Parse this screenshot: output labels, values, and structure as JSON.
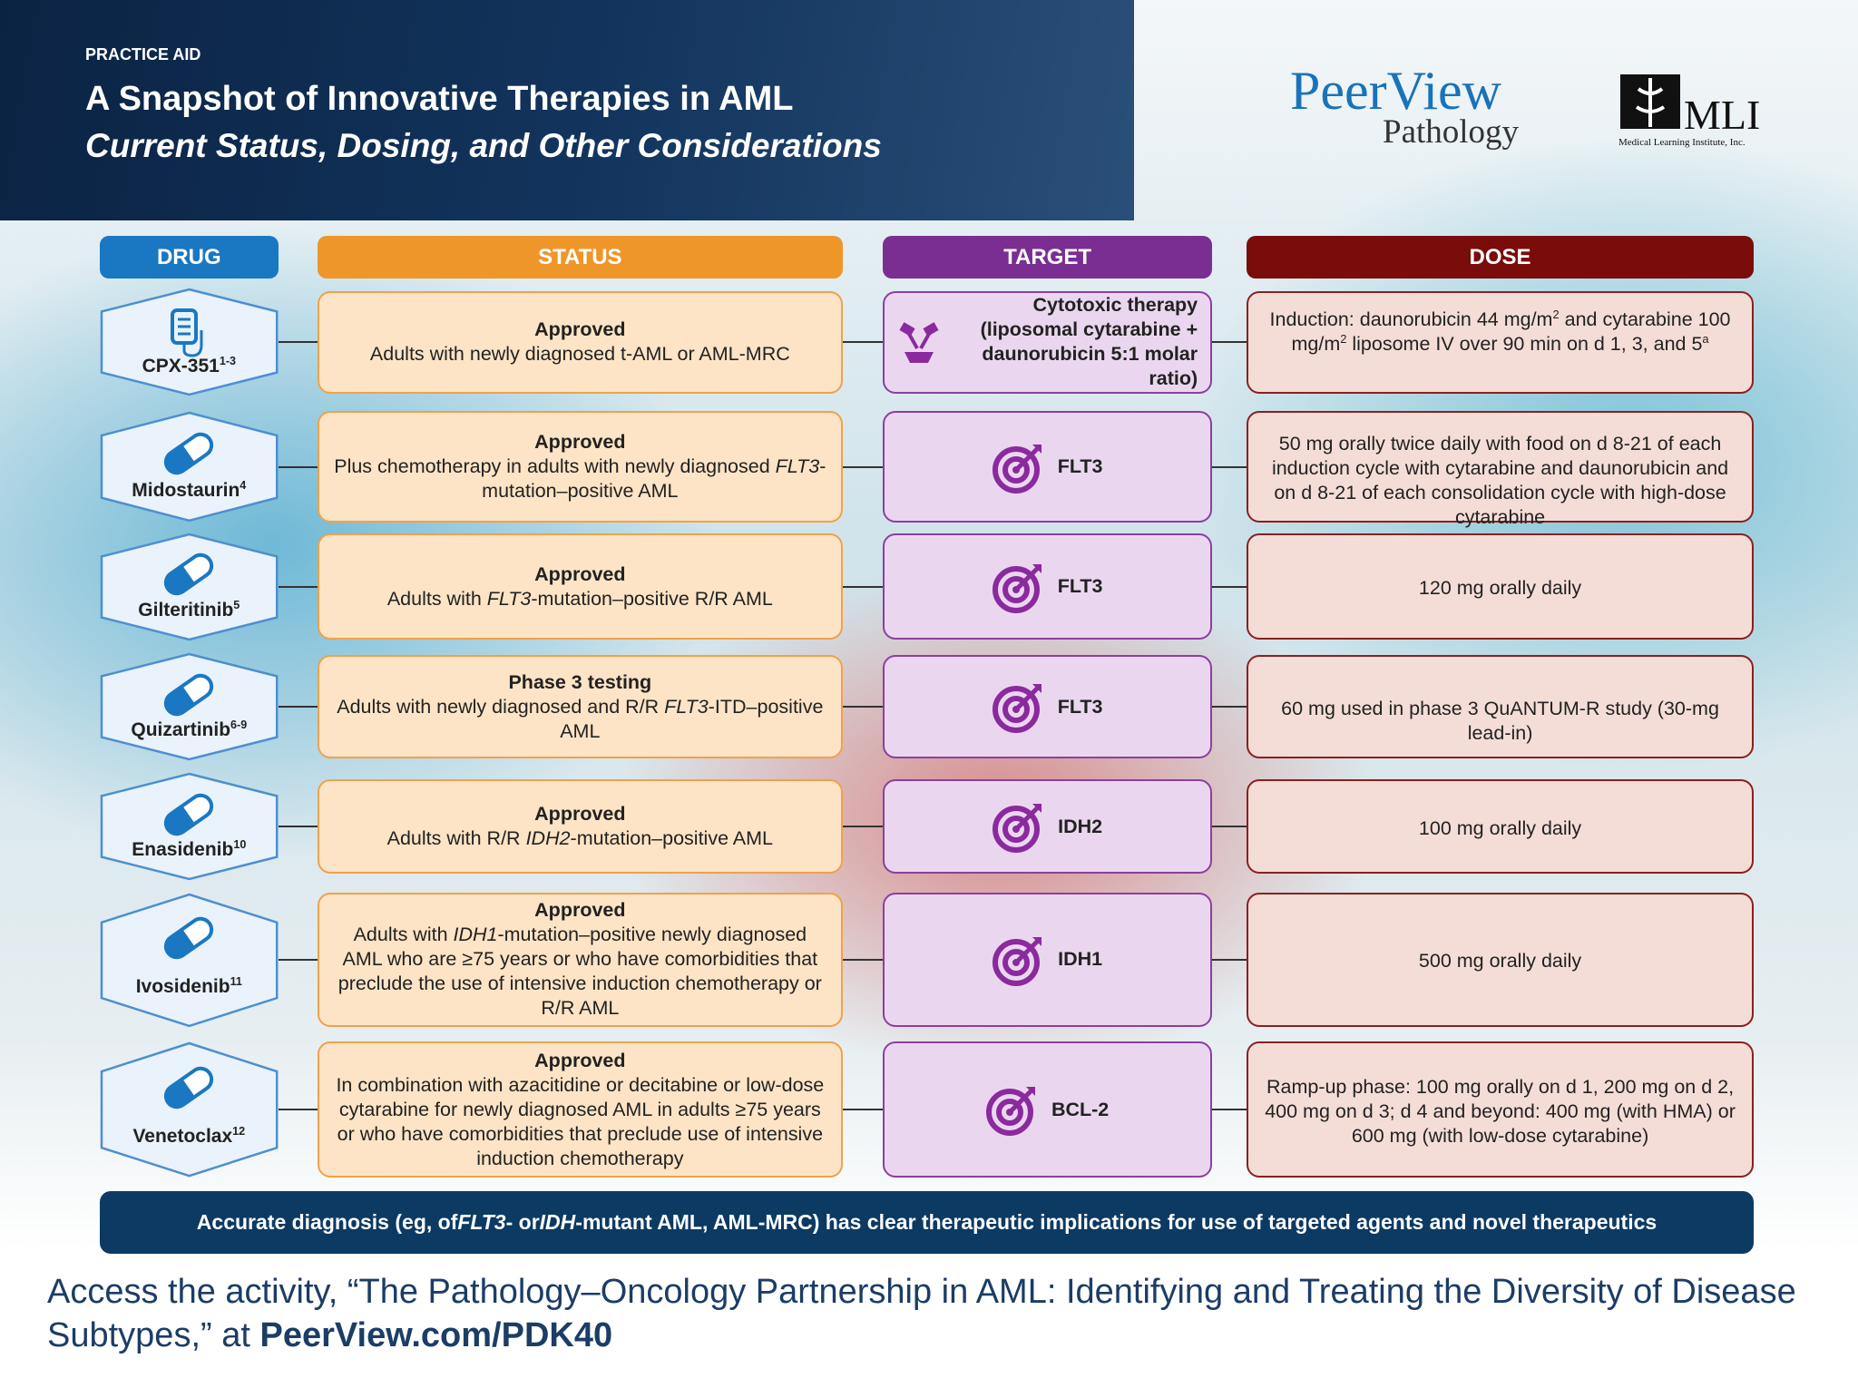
{
  "header": {
    "label": "PRACTICE AID",
    "title": "A Snapshot of Innovative Therapies in AML",
    "subtitle": "Current Status, Dosing, and Other Considerations"
  },
  "logos": {
    "peerview": "PeerView",
    "pathology": "Pathology",
    "mli": "MLI",
    "mli_full": "Medical Learning Institute, Inc."
  },
  "columns": [
    "DRUG",
    "STATUS",
    "TARGET",
    "DOSE"
  ],
  "rows": [
    {
      "drug": "CPX-351",
      "ref": "1-3",
      "status_title": "Approved",
      "status": [
        "Adults with newly diagnosed t-AML or AML-MRC"
      ],
      "target": "Cytotoxic therapy (liposomal cytarabine + daunorubicin 5:1 molar ratio)",
      "dose": [
        "Induction: daunorubicin 44 mg/m",
        {
          "sup": "2"
        },
        " and cytarabine 100 mg/m",
        {
          "sup": "2"
        },
        " liposome IV over 90 min on d 1, 3, and 5",
        {
          "sup": "a"
        }
      ]
    },
    {
      "drug": "Midostaurin",
      "ref": "4",
      "status_title": "Approved",
      "status": [
        "Plus chemotherapy in adults with newly diagnosed ",
        {
          "i": "FLT3"
        },
        "-mutation–positive AML"
      ],
      "target": "FLT3",
      "dose": [
        "50 mg orally twice daily with food on d 8-21 of each induction cycle with cytarabine and daunorubicin and on d 8-21 of each consolidation cycle with high-dose cytarabine"
      ]
    },
    {
      "drug": "Gilteritinib",
      "ref": "5",
      "status_title": "Approved",
      "status": [
        "Adults with ",
        {
          "i": "FLT3"
        },
        "-mutation–positive R/R AML"
      ],
      "target": "FLT3",
      "dose": [
        "120 mg orally daily"
      ]
    },
    {
      "drug": "Quizartinib",
      "ref": "6-9",
      "status_title": "Phase 3 testing",
      "status": [
        "Adults with newly diagnosed and R/R ",
        {
          "i": "FLT3"
        },
        "-ITD–positive AML"
      ],
      "target": "FLT3",
      "dose": [
        "60 mg used in phase 3 QuANTUM-R study (30-mg lead-in)"
      ]
    },
    {
      "drug": "Enasidenib",
      "ref": "10",
      "status_title": "Approved",
      "status": [
        "Adults with R/R ",
        {
          "i": "IDH2"
        },
        "-mutation–positive AML"
      ],
      "target": "IDH2",
      "dose": [
        "100 mg orally daily"
      ]
    },
    {
      "drug": "Ivosidenib",
      "ref": "11",
      "status_title": "Approved",
      "status": [
        "Adults with ",
        {
          "i": "IDH1"
        },
        "-mutation–positive newly diagnosed AML who are ≥75 years or who have comorbidities that preclude the use of intensive induction chemotherapy or R/R AML"
      ],
      "target": "IDH1",
      "dose": [
        "500 mg orally daily"
      ]
    },
    {
      "drug": "Venetoclax",
      "ref": "12",
      "status_title": "Approved",
      "status": [
        "In combination with azacitidine or decitabine or low-dose cytarabine for newly diagnosed AML in adults ≥75 years or who have comorbidities that preclude use of intensive induction chemotherapy"
      ],
      "target": "BCL-2",
      "dose": [
        "Ramp-up phase: 100 mg orally on d 1, 200 mg on d 2, 400 mg on d 3; d 4 and beyond: 400 mg (with HMA) or 600 mg (with low-dose cytarabine)"
      ]
    }
  ],
  "banner": [
    "Accurate diagnosis (eg, of ",
    {
      "i": "FLT3"
    },
    "- or ",
    {
      "i": "IDH"
    },
    "-mutant AML, AML-MRC) has clear therapeutic implications for use of targeted agents and novel therapeutics"
  ],
  "footer": [
    "Access the activity, “The Pathology–Oncology Partnership in AML: Identifying and Treating the Diversity of Disease Subtypes,” at ",
    {
      "b": "PeerView.com/PDK40"
    }
  ]
}
